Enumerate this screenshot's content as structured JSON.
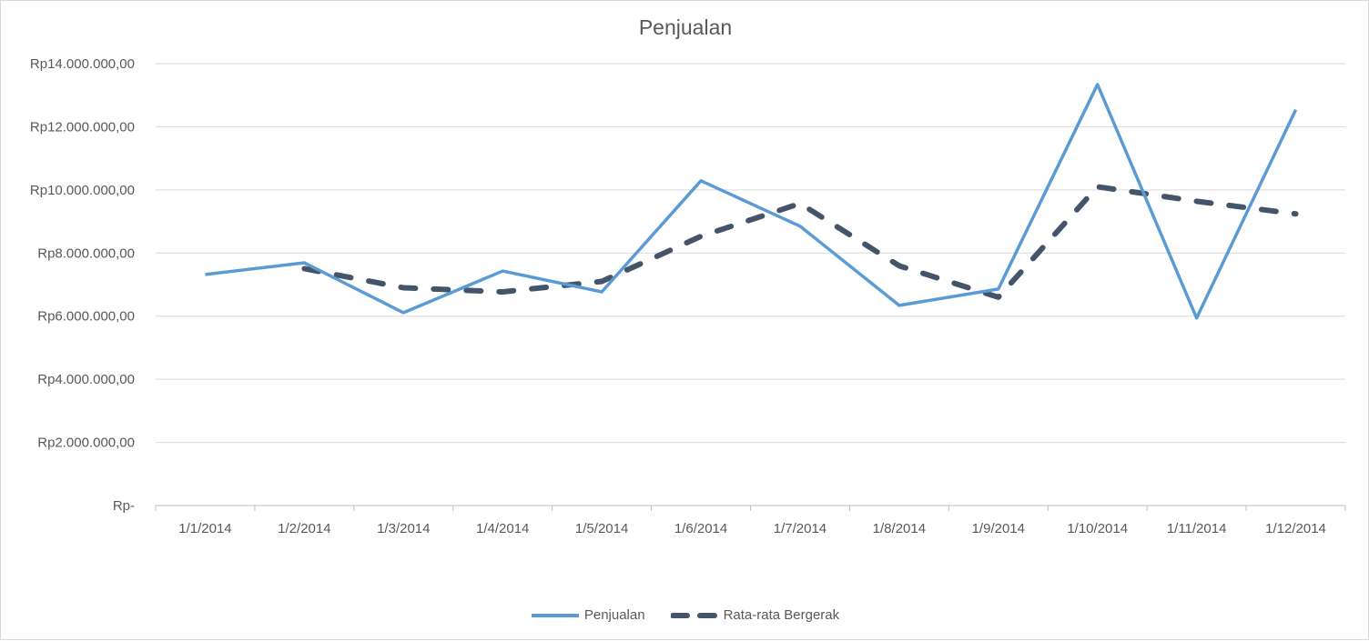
{
  "chart_data": {
    "type": "line",
    "title": "Penjualan",
    "categories": [
      "1/1/2014",
      "1/2/2014",
      "1/3/2014",
      "1/4/2014",
      "1/5/2014",
      "1/6/2014",
      "1/7/2014",
      "1/8/2014",
      "1/9/2014",
      "1/10/2014",
      "1/11/2014",
      "1/12/2014"
    ],
    "series": [
      {
        "name": "Penjualan",
        "color": "#5b9bd5",
        "style": "solid",
        "values": [
          7320000,
          7690000,
          6110000,
          7430000,
          6770000,
          10290000,
          8850000,
          6340000,
          6860000,
          13340000,
          5940000,
          12540000
        ]
      },
      {
        "name": "Rata-rata Bergerak",
        "color": "#44546a",
        "style": "dashed",
        "values": [
          null,
          7505000,
          6900000,
          6770000,
          7100000,
          8530000,
          9570000,
          7595000,
          6600000,
          10100000,
          9640000,
          9240000
        ]
      }
    ],
    "ylim": [
      0,
      14000000
    ],
    "yticks": [
      0,
      2000000,
      4000000,
      6000000,
      8000000,
      10000000,
      12000000,
      14000000
    ],
    "ytick_labels": [
      "Rp-",
      "Rp2.000.000,00",
      "Rp4.000.000,00",
      "Rp6.000.000,00",
      "Rp8.000.000,00",
      "Rp10.000.000,00",
      "Rp12.000.000,00",
      "Rp14.000.000,00"
    ],
    "grid": true,
    "legend": "bottom"
  }
}
